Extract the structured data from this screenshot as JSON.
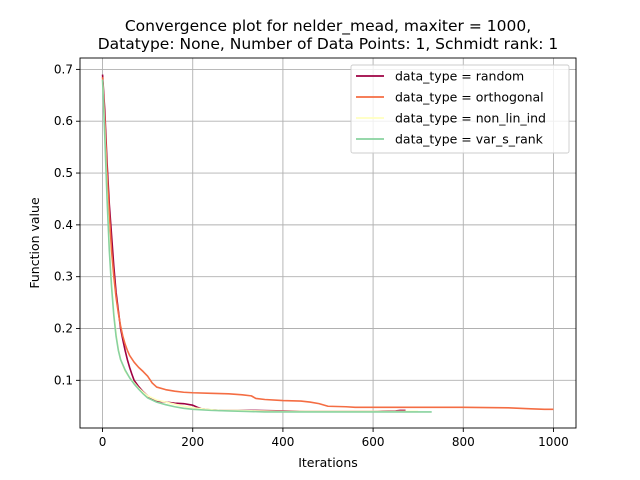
{
  "chart_data": {
    "type": "line",
    "title_line1": "Convergence plot for nelder_mead, maxiter = 1000,",
    "title_line2": "Datatype: None, Number of Data Points: 1, Schmidt rank: 1",
    "xlabel": "Iterations",
    "ylabel": "Function value",
    "xlim": [
      -50,
      1050
    ],
    "ylim": [
      0.008,
      0.722
    ],
    "x_ticks": [
      0,
      200,
      400,
      600,
      800,
      1000
    ],
    "x_tick_labels": [
      "0",
      "200",
      "400",
      "600",
      "800",
      "1000"
    ],
    "y_ticks": [
      0.1,
      0.2,
      0.3,
      0.4,
      0.5,
      0.6,
      0.7
    ],
    "y_tick_labels": [
      "0.1",
      "0.2",
      "0.3",
      "0.4",
      "0.5",
      "0.6",
      "0.7"
    ],
    "grid": true,
    "legend_position": "top-right",
    "series": [
      {
        "name": "data_type = random",
        "color": "#9e0142",
        "points": [
          [
            0,
            0.69
          ],
          [
            5,
            0.62
          ],
          [
            10,
            0.52
          ],
          [
            15,
            0.44
          ],
          [
            20,
            0.38
          ],
          [
            25,
            0.32
          ],
          [
            30,
            0.27
          ],
          [
            35,
            0.235
          ],
          [
            40,
            0.2
          ],
          [
            45,
            0.178
          ],
          [
            50,
            0.158
          ],
          [
            55,
            0.14
          ],
          [
            60,
            0.125
          ],
          [
            65,
            0.112
          ],
          [
            70,
            0.1
          ],
          [
            80,
            0.088
          ],
          [
            90,
            0.078
          ],
          [
            100,
            0.07
          ],
          [
            110,
            0.063
          ],
          [
            120,
            0.06
          ],
          [
            140,
            0.058
          ],
          [
            160,
            0.056
          ],
          [
            180,
            0.055
          ],
          [
            200,
            0.052
          ],
          [
            210,
            0.048
          ],
          [
            220,
            0.045
          ],
          [
            240,
            0.043
          ],
          [
            260,
            0.042
          ],
          [
            300,
            0.042
          ],
          [
            340,
            0.042
          ],
          [
            400,
            0.041
          ],
          [
            450,
            0.04
          ],
          [
            500,
            0.04
          ],
          [
            550,
            0.04
          ],
          [
            600,
            0.04
          ],
          [
            650,
            0.041
          ],
          [
            660,
            0.042
          ],
          [
            672,
            0.042
          ]
        ]
      },
      {
        "name": "data_type = orthogonal",
        "color": "#f46d43",
        "points": [
          [
            0,
            0.685
          ],
          [
            5,
            0.6
          ],
          [
            10,
            0.5
          ],
          [
            15,
            0.42
          ],
          [
            20,
            0.35
          ],
          [
            25,
            0.3
          ],
          [
            30,
            0.26
          ],
          [
            35,
            0.23
          ],
          [
            40,
            0.205
          ],
          [
            45,
            0.185
          ],
          [
            50,
            0.17
          ],
          [
            55,
            0.158
          ],
          [
            60,
            0.148
          ],
          [
            70,
            0.135
          ],
          [
            80,
            0.125
          ],
          [
            90,
            0.117
          ],
          [
            100,
            0.108
          ],
          [
            110,
            0.095
          ],
          [
            120,
            0.087
          ],
          [
            140,
            0.082
          ],
          [
            160,
            0.079
          ],
          [
            180,
            0.077
          ],
          [
            200,
            0.076
          ],
          [
            240,
            0.075
          ],
          [
            280,
            0.074
          ],
          [
            310,
            0.072
          ],
          [
            330,
            0.07
          ],
          [
            340,
            0.065
          ],
          [
            360,
            0.063
          ],
          [
            400,
            0.061
          ],
          [
            440,
            0.06
          ],
          [
            460,
            0.058
          ],
          [
            480,
            0.055
          ],
          [
            500,
            0.05
          ],
          [
            540,
            0.049
          ],
          [
            560,
            0.048
          ],
          [
            600,
            0.048
          ],
          [
            700,
            0.048
          ],
          [
            800,
            0.048
          ],
          [
            900,
            0.047
          ],
          [
            950,
            0.045
          ],
          [
            980,
            0.044
          ],
          [
            1000,
            0.044
          ]
        ]
      },
      {
        "name": "data_type = non_lin_ind",
        "color": "#ffffbf",
        "points": [
          [
            0,
            0.68
          ],
          [
            5,
            0.58
          ],
          [
            10,
            0.46
          ],
          [
            15,
            0.36
          ],
          [
            20,
            0.29
          ],
          [
            25,
            0.23
          ],
          [
            30,
            0.19
          ],
          [
            35,
            0.16
          ],
          [
            40,
            0.14
          ],
          [
            50,
            0.118
          ],
          [
            60,
            0.105
          ],
          [
            70,
            0.095
          ],
          [
            80,
            0.085
          ],
          [
            90,
            0.077
          ],
          [
            100,
            0.07
          ],
          [
            120,
            0.062
          ],
          [
            140,
            0.058
          ],
          [
            160,
            0.054
          ],
          [
            180,
            0.05
          ],
          [
            200,
            0.047
          ],
          [
            230,
            0.044
          ],
          [
            260,
            0.042
          ],
          [
            300,
            0.042
          ],
          [
            340,
            0.041
          ],
          [
            400,
            0.04
          ],
          [
            500,
            0.04
          ],
          [
            600,
            0.04
          ],
          [
            680,
            0.04
          ],
          [
            700,
            0.04
          ]
        ]
      },
      {
        "name": "data_type = var_s_rank",
        "color": "#88d29f",
        "points": [
          [
            0,
            0.68
          ],
          [
            5,
            0.57
          ],
          [
            10,
            0.45
          ],
          [
            15,
            0.35
          ],
          [
            20,
            0.28
          ],
          [
            25,
            0.225
          ],
          [
            30,
            0.185
          ],
          [
            35,
            0.158
          ],
          [
            40,
            0.14
          ],
          [
            50,
            0.12
          ],
          [
            60,
            0.105
          ],
          [
            70,
            0.093
          ],
          [
            80,
            0.083
          ],
          [
            90,
            0.074
          ],
          [
            100,
            0.066
          ],
          [
            120,
            0.058
          ],
          [
            140,
            0.053
          ],
          [
            160,
            0.049
          ],
          [
            180,
            0.046
          ],
          [
            200,
            0.044
          ],
          [
            240,
            0.042
          ],
          [
            280,
            0.041
          ],
          [
            320,
            0.04
          ],
          [
            360,
            0.039
          ],
          [
            400,
            0.039
          ],
          [
            500,
            0.039
          ],
          [
            600,
            0.039
          ],
          [
            700,
            0.039
          ],
          [
            730,
            0.039
          ]
        ]
      }
    ]
  }
}
